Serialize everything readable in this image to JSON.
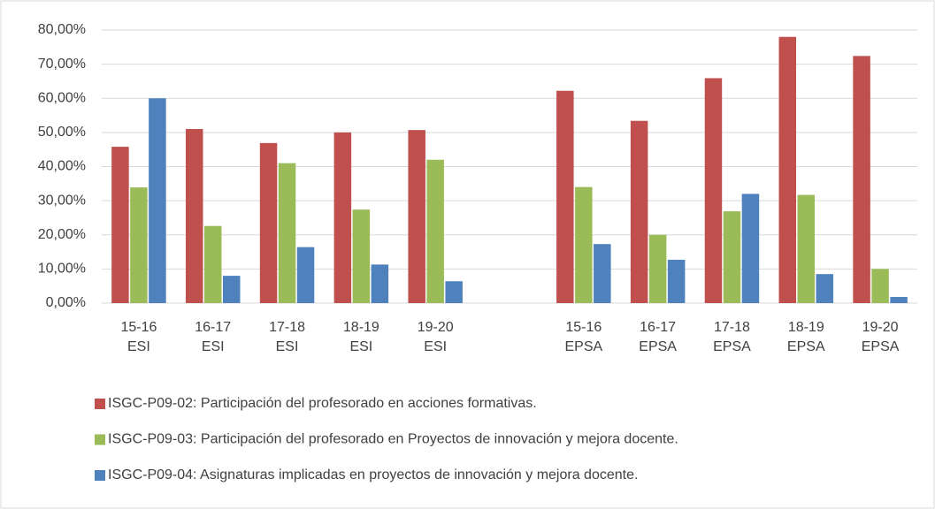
{
  "chart_data": {
    "type": "bar",
    "categories": [
      "15-16\nESI",
      "16-17\nESI",
      "17-18\nESI",
      "18-19\nESI",
      "19-20\nESI",
      null,
      "15-16\nEPSA",
      "16-17\nEPSA",
      "17-18\nEPSA",
      "18-19\nEPSA",
      "19-20\nEPSA"
    ],
    "series": [
      {
        "name": "ISGC-P09-02: Participación del profesorado en acciones formativas.",
        "color": "#c0504d",
        "values": [
          45.8,
          51.0,
          46.9,
          50.0,
          50.7,
          null,
          62.2,
          53.4,
          65.9,
          78.0,
          72.4
        ]
      },
      {
        "name": "ISGC-P09-03: Participación del profesorado en Proyectos de innovación y mejora docente.",
        "color": "#9bbb59",
        "values": [
          33.9,
          22.6,
          41.0,
          27.4,
          42.0,
          null,
          34.0,
          20.0,
          26.9,
          31.7,
          10.0
        ]
      },
      {
        "name": "ISGC-P09-04:  Asignaturas implicadas en proyectos de innovación y mejora docente.",
        "color": "#4f81bd",
        "values": [
          60.0,
          8.0,
          16.4,
          11.3,
          6.4,
          null,
          17.3,
          12.7,
          32.0,
          8.5,
          1.8
        ]
      }
    ],
    "ylim": [
      0,
      80
    ],
    "yticks": [
      {
        "value": 0,
        "label": "0,00%"
      },
      {
        "value": 10,
        "label": "10,00%"
      },
      {
        "value": 20,
        "label": "20,00%"
      },
      {
        "value": 30,
        "label": "30,00%"
      },
      {
        "value": 40,
        "label": "40,00%"
      },
      {
        "value": 50,
        "label": "50,00%"
      },
      {
        "value": 60,
        "label": "60,00%"
      },
      {
        "value": 70,
        "label": "70,00%"
      },
      {
        "value": 80,
        "label": "80,00%"
      }
    ],
    "grid": true
  }
}
